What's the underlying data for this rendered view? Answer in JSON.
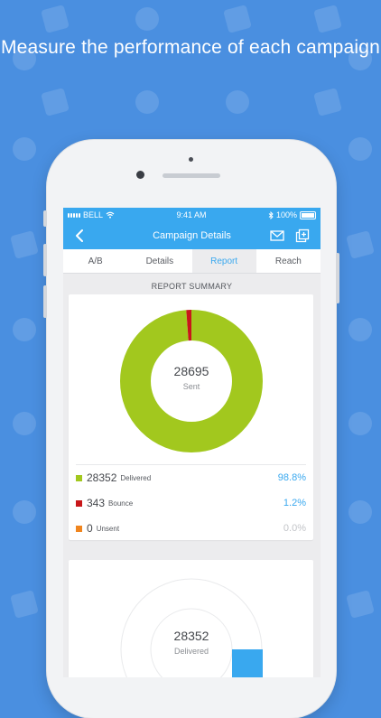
{
  "headline": "Measure the performance of each campaign",
  "status_bar": {
    "carrier": "BELL",
    "time": "9:41 AM",
    "battery": "100%"
  },
  "nav": {
    "title": "Campaign Details",
    "back_icon": "chevron-left-icon",
    "mail_icon": "envelope-icon",
    "copy_icon": "duplicate-icon"
  },
  "tabs": [
    {
      "label": "A/B",
      "active": false
    },
    {
      "label": "Details",
      "active": false
    },
    {
      "label": "Report",
      "active": true
    },
    {
      "label": "Reach",
      "active": false
    }
  ],
  "report": {
    "section_title": "REPORT SUMMARY",
    "sent": {
      "value": "28695",
      "label": "Sent"
    },
    "legend": [
      {
        "value": "28352",
        "label": "Delivered",
        "percent": "98.8%",
        "color": "#a2c81e"
      },
      {
        "value": "343",
        "label": "Bounce",
        "percent": "1.2%",
        "color": "#c8171a"
      },
      {
        "value": "0",
        "label": "Unsent",
        "percent": "0.0%",
        "color": "#f0851e"
      }
    ],
    "delivered": {
      "value": "28352",
      "label": "Delivered"
    }
  },
  "colors": {
    "background": "#4a8fe0",
    "accent": "#39a8ef",
    "delivered": "#a2c81e",
    "bounce": "#c8171a",
    "unsent": "#f0851e"
  }
}
